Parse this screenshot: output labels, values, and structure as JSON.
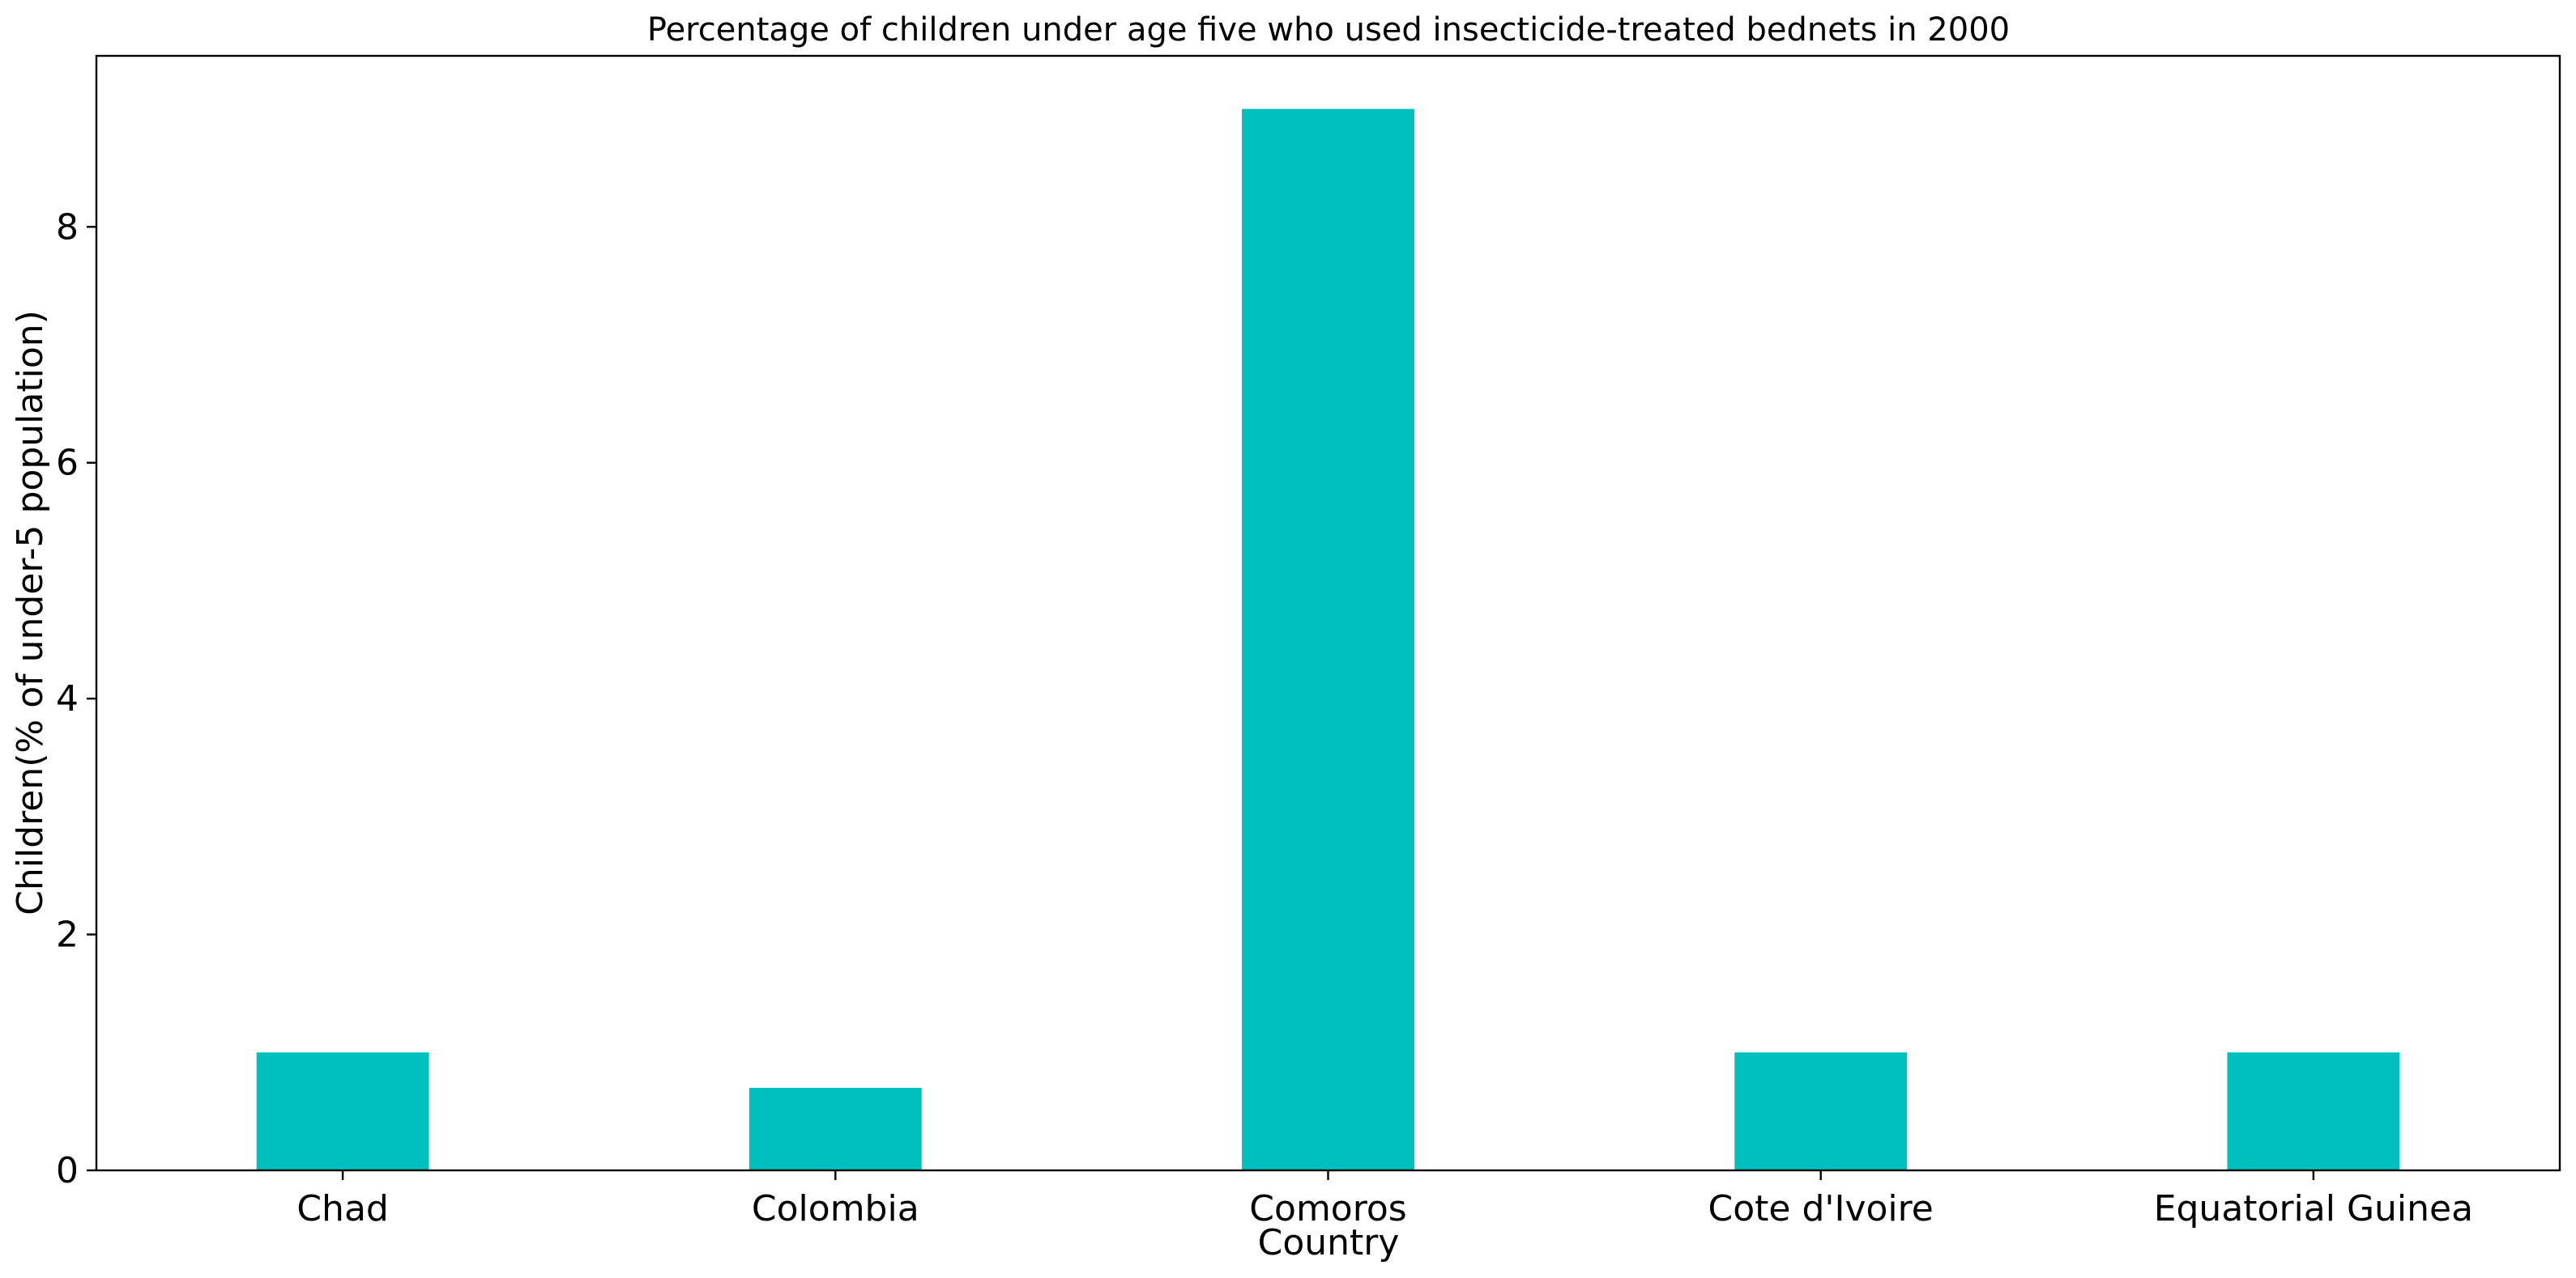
{
  "chart_data": {
    "type": "bar",
    "title": "Percentage of children under age five who used insecticide-treated bednets in 2000",
    "xlabel": "Country",
    "ylabel": "Children(% of under-5 population)",
    "categories": [
      "Chad",
      "Colombia",
      "Comoros",
      "Cote d'Ivoire",
      "Equatorial Guinea"
    ],
    "values": [
      1.0,
      0.7,
      9.0,
      1.0,
      1.0
    ],
    "ylim": [
      0,
      9.45
    ],
    "yticks": [
      0,
      2,
      4,
      6,
      8
    ],
    "bar_color": "#00bfbf",
    "grid": false,
    "legend": "none"
  }
}
